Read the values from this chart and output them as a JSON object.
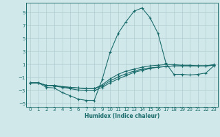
{
  "xlabel": "Humidex (Indice chaleur)",
  "bg_color": "#d0e8ea",
  "grid_color": "#b0cdd0",
  "line_color": "#1a6b6b",
  "x_values": [
    0,
    1,
    2,
    3,
    4,
    5,
    6,
    7,
    8,
    9,
    10,
    11,
    12,
    13,
    14,
    15,
    16,
    17,
    18,
    19,
    20,
    21,
    22,
    23
  ],
  "series1": [
    -1.8,
    -1.8,
    -2.5,
    -2.6,
    -3.3,
    -3.8,
    -4.3,
    -4.5,
    -4.5,
    -1.3,
    2.9,
    5.8,
    7.6,
    9.2,
    9.7,
    8.2,
    5.8,
    1.2,
    -0.5,
    -0.5,
    -0.6,
    -0.5,
    -0.3,
    0.8
  ],
  "series2": [
    -1.8,
    -1.8,
    -2.2,
    -2.3,
    -2.5,
    -2.7,
    -2.9,
    -3.0,
    -3.0,
    -2.5,
    -1.8,
    -1.2,
    -0.7,
    -0.2,
    0.1,
    0.4,
    0.6,
    0.7,
    0.8,
    0.8,
    0.8,
    0.8,
    0.8,
    1.0
  ],
  "series3": [
    -1.8,
    -1.8,
    -2.2,
    -2.2,
    -2.4,
    -2.5,
    -2.6,
    -2.7,
    -2.7,
    -2.3,
    -1.5,
    -0.9,
    -0.4,
    0.0,
    0.3,
    0.5,
    0.6,
    0.7,
    0.8,
    0.8,
    0.8,
    0.8,
    0.8,
    0.9
  ],
  "series4": [
    -1.8,
    -1.8,
    -2.2,
    -2.2,
    -2.4,
    -2.5,
    -2.6,
    -2.7,
    -2.7,
    -2.1,
    -1.2,
    -0.5,
    0.0,
    0.3,
    0.6,
    0.8,
    0.9,
    1.0,
    1.0,
    0.9,
    0.9,
    0.8,
    0.8,
    0.9
  ],
  "xlim": [
    -0.5,
    23.5
  ],
  "ylim": [
    -5.5,
    10.5
  ],
  "yticks": [
    -5,
    -3,
    -1,
    1,
    3,
    5,
    7,
    9
  ],
  "xticks": [
    0,
    1,
    2,
    3,
    4,
    5,
    6,
    7,
    8,
    9,
    10,
    11,
    12,
    13,
    14,
    15,
    16,
    17,
    18,
    19,
    20,
    21,
    22,
    23
  ]
}
